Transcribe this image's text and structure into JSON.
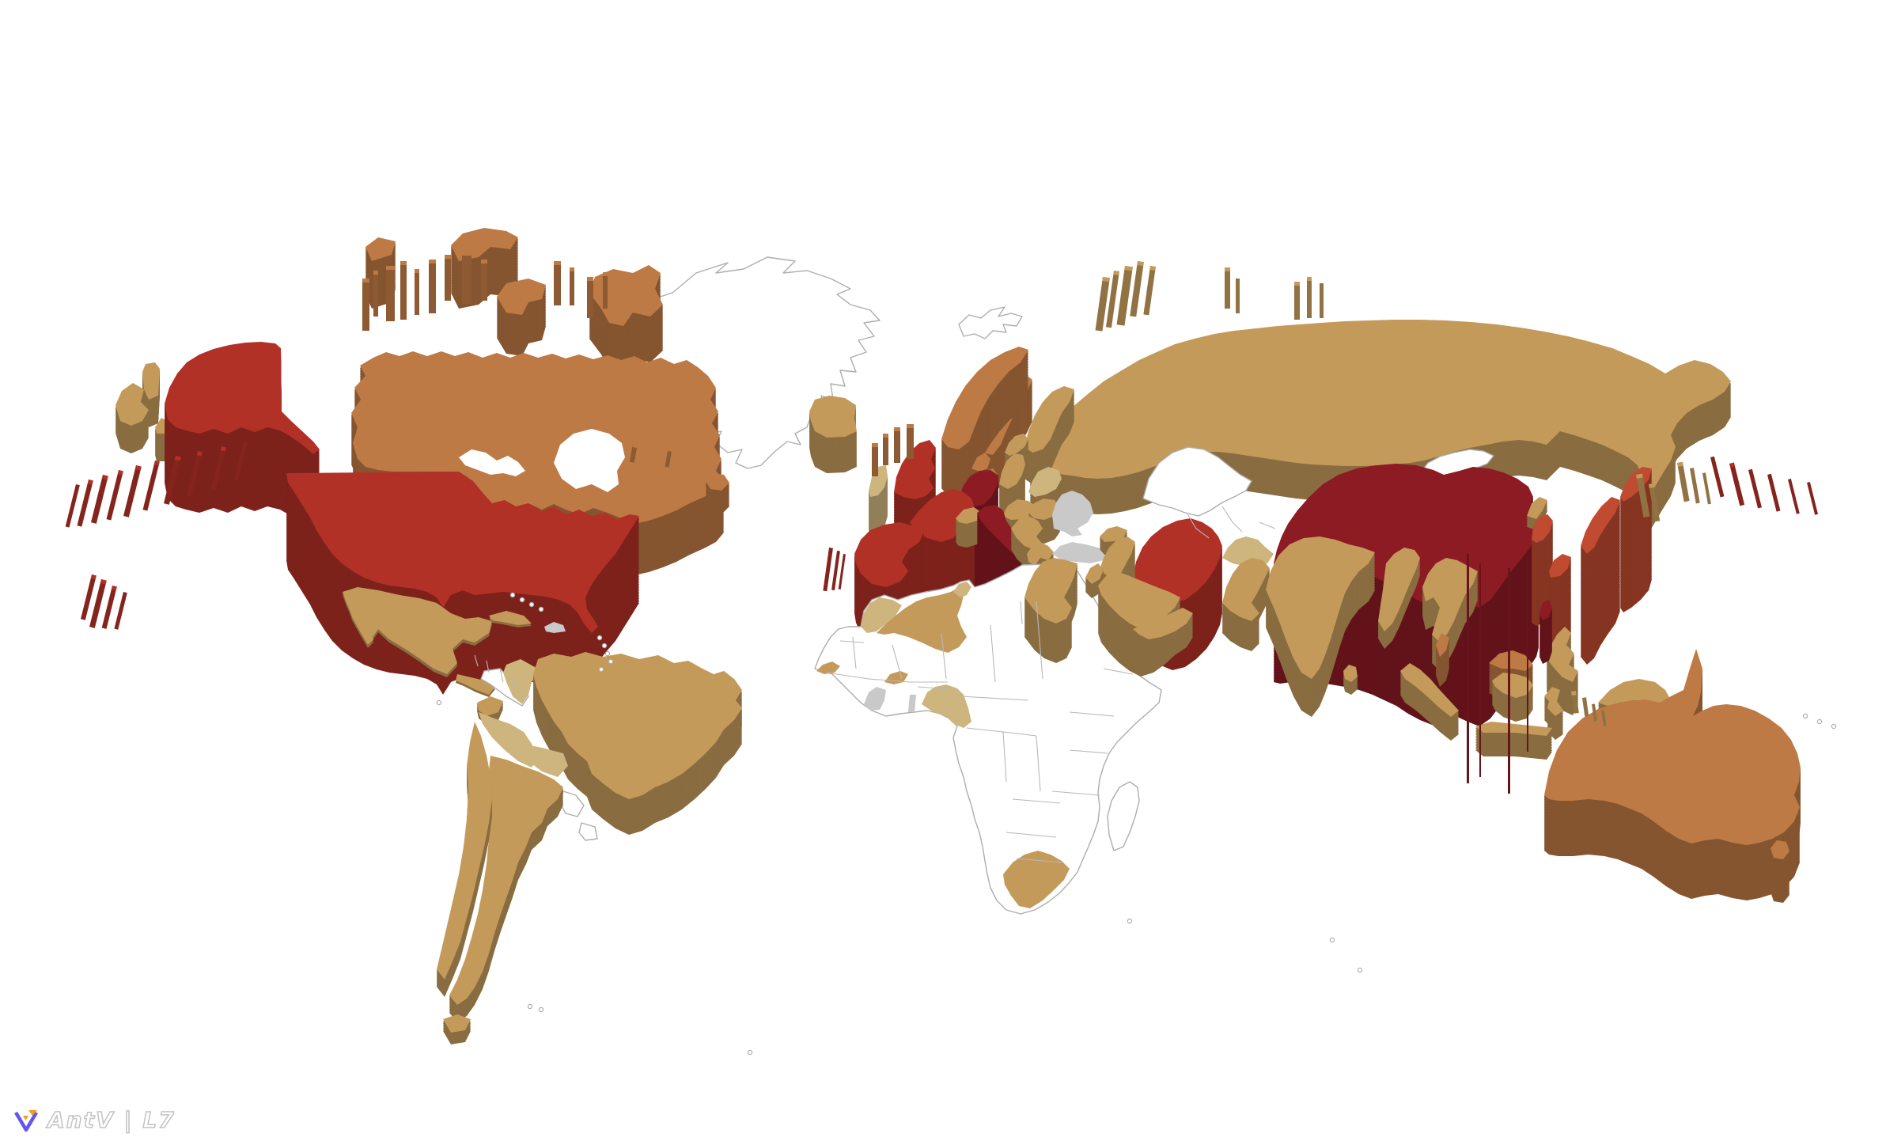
{
  "branding": {
    "logo_text": "AntV | L7",
    "logo_icon": "antv-l7-logo"
  },
  "map": {
    "type": "3d-extruded-choropleth-world-map",
    "background": "#ffffff",
    "outline_stroke": "#adadad",
    "inner_border_stroke": "#b8b8b8",
    "palette": {
      "light_tan": "#cdb57d",
      "tan": "#c49a5b",
      "orange": "#be7a45",
      "orange_red": "#c04b31",
      "red": "#b23127",
      "dark_red": "#8c1b24",
      "gray": "#c9c9c9",
      "none": "#ffffff"
    },
    "countries": {
      "russia": {
        "label": "Russia",
        "color": "tan",
        "extrusion": 45
      },
      "chukotka-west": {
        "label": "Russia (Chukotka, far east)",
        "color": "tan",
        "extrusion": 35
      },
      "mongolia": {
        "label": "Mongolia",
        "color": "none",
        "extrusion": 0
      },
      "kazakhstan": {
        "label": "Kazakhstan",
        "color": "none",
        "extrusion": 0
      },
      "greenland": {
        "label": "Greenland",
        "color": "none",
        "extrusion": 0
      },
      "svalbard": {
        "label": "Svalbard",
        "color": "none",
        "extrusion": 0
      },
      "iceland": {
        "label": "Iceland",
        "color": "tan",
        "extrusion": 45
      },
      "canada": {
        "label": "Canada",
        "color": "orange",
        "extrusion": 65
      },
      "canada-baffin": {
        "label": "Canada (Baffin Island)",
        "color": "orange",
        "extrusion": 58
      },
      "canada-victoria": {
        "label": "Canada (Victoria Island)",
        "color": "orange",
        "extrusion": 52
      },
      "canada-ellesmere": {
        "label": "Canada (Ellesmere Island)",
        "color": "orange",
        "extrusion": 60
      },
      "newfoundland": {
        "label": "Canada (Newfoundland)",
        "color": "orange",
        "extrusion": 30
      },
      "alaska": {
        "label": "United States (Alaska)",
        "color": "red",
        "extrusion": 100
      },
      "usa": {
        "label": "United States",
        "color": "red",
        "extrusion": 110
      },
      "mexico": {
        "label": "Mexico",
        "color": "tan",
        "extrusion": 4
      },
      "guatemala-honduras": {
        "label": "Guatemala / Honduras",
        "color": "tan",
        "extrusion": 3
      },
      "cuba": {
        "label": "Cuba",
        "color": "tan",
        "extrusion": 3
      },
      "hispaniola": {
        "label": "Haiti / Dominican Republic",
        "color": "gray",
        "extrusion": 0
      },
      "venezuela": {
        "label": "Venezuela / Guianas",
        "color": "tan",
        "extrusion": 22
      },
      "colombia": {
        "label": "Colombia",
        "color": "light_tan",
        "extrusion": 0
      },
      "ecuador": {
        "label": "Ecuador",
        "color": "tan",
        "extrusion": 10
      },
      "peru": {
        "label": "Peru",
        "color": "light_tan",
        "extrusion": 0
      },
      "bolivia": {
        "label": "Bolivia",
        "color": "light_tan",
        "extrusion": 0
      },
      "brazil": {
        "label": "Brazil",
        "color": "tan",
        "extrusion": 45
      },
      "argentina": {
        "label": "Argentina",
        "color": "tan",
        "extrusion": 22
      },
      "chile": {
        "label": "Chile",
        "color": "tan",
        "extrusion": 22
      },
      "tierra-del-fuego": {
        "label": "Tierra del Fuego",
        "color": "tan",
        "extrusion": 15
      },
      "uk": {
        "label": "United Kingdom",
        "color": "red",
        "extrusion": 100
      },
      "ireland": {
        "label": "Ireland",
        "color": "light_tan",
        "extrusion": 50
      },
      "france": {
        "label": "France",
        "color": "red",
        "extrusion": 110
      },
      "spain": {
        "label": "Spain / Portugal",
        "color": "red",
        "extrusion": 75
      },
      "germany": {
        "label": "Germany",
        "color": "dark_red",
        "extrusion": 120
      },
      "italy": {
        "label": "Italy",
        "color": "dark_red",
        "extrusion": 130
      },
      "netherlands": {
        "label": "Netherlands / Belgium",
        "color": "orange",
        "extrusion": 55
      },
      "denmark": {
        "label": "Denmark",
        "color": "orange",
        "extrusion": 30
      },
      "norway": {
        "label": "Norway",
        "color": "orange",
        "extrusion": 62
      },
      "sweden": {
        "label": "Sweden",
        "color": "orange",
        "extrusion": 52
      },
      "finland": {
        "label": "Finland",
        "color": "tan",
        "extrusion": 40
      },
      "poland": {
        "label": "Poland",
        "color": "tan",
        "extrusion": 45
      },
      "baltics": {
        "label": "Baltic states",
        "color": "tan",
        "extrusion": 20
      },
      "belarus": {
        "label": "Belarus",
        "color": "light_tan",
        "extrusion": 0
      },
      "ukraine": {
        "label": "Ukraine",
        "color": "gray",
        "extrusion": 0
      },
      "central-europe": {
        "label": "Czechia / Austria / Hungary",
        "color": "tan",
        "extrusion": 35
      },
      "romania": {
        "label": "Romania",
        "color": "tan",
        "extrusion": 30
      },
      "balkans": {
        "label": "Balkans",
        "color": "tan",
        "extrusion": 26
      },
      "greece": {
        "label": "Greece",
        "color": "tan",
        "extrusion": 36
      },
      "turkey": {
        "label": "Turkey",
        "color": "gray",
        "extrusion": 0
      },
      "caucasus": {
        "label": "Caucasus",
        "color": "tan",
        "extrusion": 16
      },
      "central-asia": {
        "label": "Turkmenistan / Uzbekistan",
        "color": "light_tan",
        "extrusion": 0
      },
      "iran": {
        "label": "Iran",
        "color": "red",
        "extrusion": 85
      },
      "iraq-syria": {
        "label": "Iraq / Syria",
        "color": "tan",
        "extrusion": 45
      },
      "israel-jordan": {
        "label": "Israel / Jordan",
        "color": "tan",
        "extrusion": 18
      },
      "saudi-arabia": {
        "label": "Saudi Arabia",
        "color": "tan",
        "extrusion": 60
      },
      "yemen-oman": {
        "label": "Yemen / Oman",
        "color": "tan",
        "extrusion": 30
      },
      "egypt": {
        "label": "Egypt",
        "color": "tan",
        "extrusion": 50
      },
      "africa-outline": {
        "label": "Africa (no data)",
        "color": "none",
        "extrusion": 0
      },
      "madagascar": {
        "label": "Madagascar",
        "color": "none",
        "extrusion": 0
      },
      "morocco": {
        "label": "Morocco",
        "color": "light_tan",
        "extrusion": 0
      },
      "algeria": {
        "label": "Algeria",
        "color": "tan",
        "extrusion": 0
      },
      "tunisia": {
        "label": "Tunisia",
        "color": "light_tan",
        "extrusion": 0
      },
      "senegal": {
        "label": "Senegal",
        "color": "tan",
        "extrusion": 0
      },
      "burkina-faso": {
        "label": "Burkina Faso",
        "color": "tan",
        "extrusion": 0
      },
      "cote-divoire": {
        "label": "Côte d'Ivoire",
        "color": "gray",
        "extrusion": 0
      },
      "togo-benin": {
        "label": "Togo / Benin",
        "color": "gray",
        "extrusion": 0
      },
      "nigeria-cameroon": {
        "label": "Nigeria / Cameroon",
        "color": "light_tan",
        "extrusion": 0
      },
      "south-africa": {
        "label": "South Africa",
        "color": "tan",
        "extrusion": 0
      },
      "afghanistan-pakistan": {
        "label": "Afghanistan / Pakistan",
        "color": "tan",
        "extrusion": 38
      },
      "india": {
        "label": "India",
        "color": "tan",
        "extrusion": 48
      },
      "sri-lanka": {
        "label": "Sri Lanka",
        "color": "tan",
        "extrusion": 16
      },
      "bangladesh-myanmar": {
        "label": "Bangladesh / Myanmar",
        "color": "tan",
        "extrusion": 22
      },
      "indochina": {
        "label": "Thailand / Indochina",
        "color": "tan",
        "extrusion": 36
      },
      "malaysia": {
        "label": "Malaysia",
        "color": "orange",
        "extrusion": 38
      },
      "indonesia": {
        "label": "Indonesia",
        "color": "tan",
        "extrusion": 30
      },
      "philippines": {
        "label": "Philippines",
        "color": "tan",
        "extrusion": 42
      },
      "taiwan": {
        "label": "Taiwan",
        "color": "dark_red",
        "extrusion": 55
      },
      "png": {
        "label": "Papua New Guinea",
        "color": "tan",
        "extrusion": 26
      },
      "australia": {
        "label": "Australia",
        "color": "orange",
        "extrusion": 70
      },
      "tasmania": {
        "label": "Australia (Tasmania)",
        "color": "orange",
        "extrusion": 55
      },
      "china": {
        "label": "China",
        "color": "dark_red",
        "extrusion": 150
      },
      "north-korea": {
        "label": "North Korea",
        "color": "tan",
        "extrusion": 14
      },
      "south-korea": {
        "label": "South Korea",
        "color": "orange_red",
        "extrusion": 105
      },
      "japan": {
        "label": "Japan",
        "color": "orange_red",
        "extrusion": 140
      },
      "paraguay": {
        "label": "Paraguay",
        "color": "none",
        "extrusion": 0
      },
      "uruguay": {
        "label": "Uruguay",
        "color": "none",
        "extrusion": 0
      },
      "central-america-outline": {
        "label": "Central America (no data)",
        "color": "none",
        "extrusion": 0
      }
    },
    "decorations": {
      "arctic-canada-pillars": {
        "label": "Canadian Arctic Archipelago",
        "color": "orange"
      },
      "novaya-zemlya": {
        "label": "Novaya Zemlya",
        "color": "tan"
      },
      "franz-josef": {
        "label": "Franz Josef Land",
        "color": "tan"
      },
      "severnaya": {
        "label": "Severnaya Zemlya",
        "color": "tan"
      },
      "aleutians-west": {
        "label": "Aleutian Islands (west)",
        "color": "red"
      },
      "aleutians-east": {
        "label": "Aleutian Islands (east)",
        "color": "red"
      },
      "hawaii": {
        "label": "Hawaii",
        "color": "red"
      },
      "canary-islands": {
        "label": "Canary Islands",
        "color": "red"
      },
      "azores": {
        "label": "Azores / Madeira",
        "color": "orange"
      },
      "faroe-shetland": {
        "label": "Faroe / Shetland",
        "color": "orange"
      },
      "kuril-sakhalin": {
        "label": "Sakhalin / Kuril Islands",
        "color": "tan"
      },
      "china-island-walls": {
        "label": "China (small islands)",
        "color": "dark_red"
      },
      "moluccas": {
        "label": "Moluccas / Lesser Sunda",
        "color": "tan"
      }
    }
  }
}
